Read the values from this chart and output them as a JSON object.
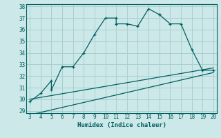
{
  "xlabel": "Humidex (Indice chaleur)",
  "main_x": [
    3,
    4,
    5,
    5,
    6,
    7,
    8,
    9,
    10,
    11,
    11,
    12,
    13,
    14,
    15,
    15,
    16,
    17,
    18,
    19,
    20
  ],
  "main_y": [
    29.8,
    30.5,
    31.6,
    30.8,
    32.8,
    32.8,
    34.0,
    35.6,
    37.0,
    37.0,
    36.5,
    36.5,
    36.3,
    37.8,
    37.3,
    37.3,
    36.5,
    36.5,
    34.3,
    32.5,
    32.5
  ],
  "line1_x": [
    3,
    20
  ],
  "line1_y": [
    30.0,
    32.7
  ],
  "line2_x": [
    3,
    20
  ],
  "line2_y": [
    28.65,
    32.3
  ],
  "ylim_min": 28.8,
  "ylim_max": 38.2,
  "xlim_min": 2.7,
  "xlim_max": 20.3,
  "bg_color": "#cce8e8",
  "grid_color": "#aacfcf",
  "line_color": "#005f5f",
  "yticks": [
    29,
    30,
    31,
    32,
    33,
    34,
    35,
    36,
    37,
    38
  ],
  "xticks": [
    3,
    4,
    5,
    6,
    7,
    8,
    9,
    10,
    11,
    12,
    13,
    14,
    15,
    16,
    17,
    18,
    19,
    20
  ],
  "tick_fontsize": 5.5,
  "xlabel_fontsize": 6.5
}
